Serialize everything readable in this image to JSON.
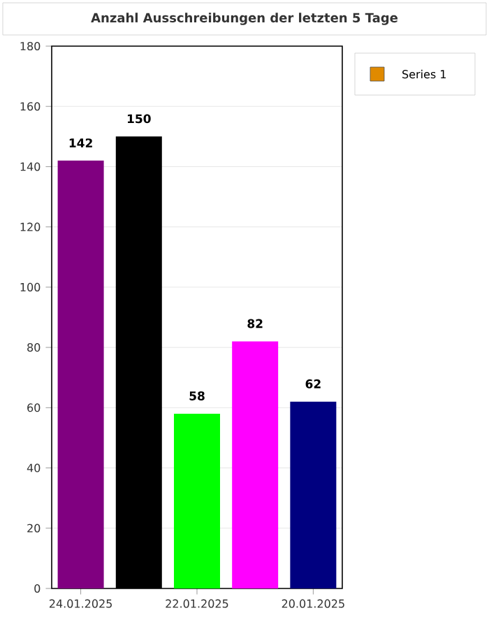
{
  "chart_data": {
    "type": "bar",
    "title": "Anzahl Ausschreibungen der letzten 5 Tage",
    "categories": [
      "24.01.2025",
      null,
      "22.01.2025",
      null,
      "20.01.2025"
    ],
    "series": [
      {
        "name": "Series 1",
        "color": "#e08a00",
        "colors": [
          "#800080",
          "#000000",
          "#00ff00",
          "#ff00ff",
          "#000080"
        ],
        "values": [
          142,
          150,
          58,
          82,
          62
        ]
      }
    ],
    "ylim": [
      0,
      180
    ],
    "yticks": [
      0,
      20,
      40,
      60,
      80,
      100,
      120,
      140,
      160,
      180
    ],
    "grid": "y",
    "legend": "top right",
    "data_labels": true
  }
}
